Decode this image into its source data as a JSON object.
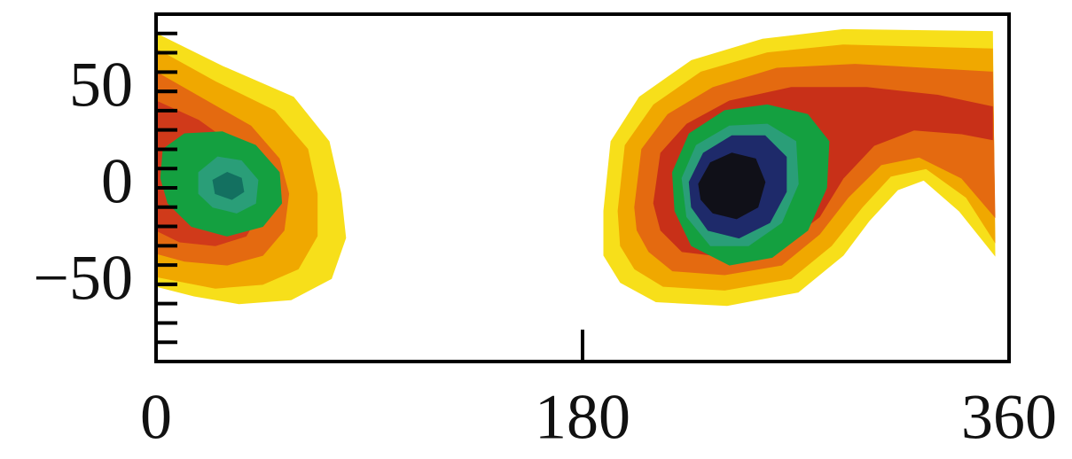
{
  "chart_data": {
    "type": "contour",
    "xlim": [
      0,
      360
    ],
    "ylim": [
      -90,
      90
    ],
    "xticks": [
      0,
      180,
      360
    ],
    "yticks": [
      {
        "value": -50,
        "label": "−50"
      },
      0,
      50
    ],
    "yminorticks": [
      -80,
      -70,
      -60,
      -50,
      -40,
      -30,
      -20,
      -10,
      0,
      10,
      20,
      30,
      40,
      50,
      60,
      70,
      80
    ],
    "regions": [
      {
        "color": "#f7df1a",
        "points": [
          [
            0,
            80
          ],
          [
            28,
            63
          ],
          [
            58,
            47
          ],
          [
            73,
            24
          ],
          [
            78,
            -3
          ],
          [
            80,
            -26
          ],
          [
            74,
            -47
          ],
          [
            57,
            -58
          ],
          [
            35,
            -60
          ],
          [
            16,
            -56
          ],
          [
            0,
            -51
          ]
        ]
      },
      {
        "color": "#f0a800",
        "points": [
          [
            0,
            72
          ],
          [
            25,
            55
          ],
          [
            50,
            40
          ],
          [
            64,
            20
          ],
          [
            68,
            -3
          ],
          [
            68,
            -25
          ],
          [
            60,
            -42
          ],
          [
            45,
            -50
          ],
          [
            25,
            -52
          ],
          [
            0,
            -46
          ]
        ]
      },
      {
        "color": "#e46a10",
        "points": [
          [
            0,
            60
          ],
          [
            20,
            46
          ],
          [
            40,
            32
          ],
          [
            52,
            15
          ],
          [
            56,
            -3
          ],
          [
            54,
            -22
          ],
          [
            45,
            -35
          ],
          [
            30,
            -40
          ],
          [
            12,
            -38
          ],
          [
            0,
            -34
          ]
        ]
      },
      {
        "color": "#d03a1a",
        "points": [
          [
            0,
            45
          ],
          [
            18,
            35
          ],
          [
            35,
            20
          ],
          [
            44,
            5
          ],
          [
            45,
            -10
          ],
          [
            38,
            -25
          ],
          [
            25,
            -30
          ],
          [
            10,
            -28
          ],
          [
            0,
            -22
          ]
        ]
      },
      {
        "color": "#14a040",
        "points": [
          [
            3,
            20
          ],
          [
            12,
            28
          ],
          [
            28,
            29
          ],
          [
            42,
            22
          ],
          [
            52,
            8
          ],
          [
            53,
            -8
          ],
          [
            45,
            -20
          ],
          [
            30,
            -25
          ],
          [
            15,
            -20
          ],
          [
            5,
            -8
          ],
          [
            2,
            5
          ]
        ]
      },
      {
        "color": "#2a9e78",
        "points": [
          [
            18,
            8
          ],
          [
            26,
            16
          ],
          [
            36,
            14
          ],
          [
            43,
            4
          ],
          [
            42,
            -8
          ],
          [
            34,
            -13
          ],
          [
            24,
            -10
          ],
          [
            18,
            -3
          ]
        ]
      },
      {
        "color": "#137060",
        "points": [
          [
            24,
            4
          ],
          [
            30,
            8
          ],
          [
            36,
            5
          ],
          [
            37,
            -2
          ],
          [
            32,
            -6
          ],
          [
            25,
            -3
          ]
        ]
      },
      {
        "color": "#f7df1a",
        "points": [
          [
            189,
            -12
          ],
          [
            192,
            24
          ],
          [
            204,
            47
          ],
          [
            226,
            66
          ],
          [
            256,
            77
          ],
          [
            290,
            82
          ],
          [
            353,
            81
          ],
          [
            354,
            -35
          ],
          [
            339,
            -12
          ],
          [
            324,
            4
          ],
          [
            313,
            -1
          ],
          [
            301,
            -17
          ],
          [
            290,
            -35
          ],
          [
            271,
            -54
          ],
          [
            241,
            -61
          ],
          [
            211,
            -59
          ],
          [
            196,
            -49
          ],
          [
            189,
            -35
          ]
        ]
      },
      {
        "color": "#f0a800",
        "points": [
          [
            195,
            -12
          ],
          [
            198,
            22
          ],
          [
            210,
            43
          ],
          [
            230,
            60
          ],
          [
            258,
            70
          ],
          [
            290,
            74
          ],
          [
            353,
            72
          ],
          [
            354,
            -28
          ],
          [
            342,
            -5
          ],
          [
            325,
            10
          ],
          [
            310,
            6
          ],
          [
            298,
            -10
          ],
          [
            285,
            -30
          ],
          [
            268,
            -47
          ],
          [
            240,
            -53
          ],
          [
            214,
            -51
          ],
          [
            202,
            -42
          ],
          [
            196,
            -30
          ]
        ]
      },
      {
        "color": "#e46a10",
        "points": [
          [
            202,
            -10
          ],
          [
            205,
            20
          ],
          [
            216,
            38
          ],
          [
            235,
            52
          ],
          [
            262,
            62
          ],
          [
            295,
            64
          ],
          [
            353,
            60
          ],
          [
            354,
            -15
          ],
          [
            340,
            5
          ],
          [
            322,
            16
          ],
          [
            306,
            12
          ],
          [
            292,
            -5
          ],
          [
            280,
            -24
          ],
          [
            264,
            -40
          ],
          [
            240,
            -45
          ],
          [
            218,
            -43
          ],
          [
            208,
            -33
          ],
          [
            203,
            -22
          ]
        ]
      },
      {
        "color": "#c83018",
        "points": [
          [
            210,
            -8
          ],
          [
            213,
            18
          ],
          [
            224,
            33
          ],
          [
            242,
            45
          ],
          [
            268,
            52
          ],
          [
            300,
            52
          ],
          [
            330,
            48
          ],
          [
            353,
            42
          ],
          [
            353,
            25
          ],
          [
            340,
            28
          ],
          [
            320,
            30
          ],
          [
            303,
            22
          ],
          [
            290,
            5
          ],
          [
            280,
            -15
          ],
          [
            264,
            -30
          ],
          [
            242,
            -36
          ],
          [
            222,
            -33
          ],
          [
            213,
            -22
          ]
        ]
      },
      {
        "color": "#14a040",
        "points": [
          [
            218,
            8
          ],
          [
            225,
            28
          ],
          [
            240,
            40
          ],
          [
            258,
            43
          ],
          [
            275,
            38
          ],
          [
            284,
            24
          ],
          [
            283,
            0
          ],
          [
            275,
            -22
          ],
          [
            260,
            -36
          ],
          [
            242,
            -40
          ],
          [
            226,
            -30
          ],
          [
            219,
            -12
          ]
        ]
      },
      {
        "color": "#2a9e78",
        "points": [
          [
            222,
            5
          ],
          [
            228,
            22
          ],
          [
            242,
            32
          ],
          [
            258,
            33
          ],
          [
            270,
            24
          ],
          [
            271,
            2
          ],
          [
            264,
            -18
          ],
          [
            250,
            -30
          ],
          [
            234,
            -30
          ],
          [
            224,
            -15
          ]
        ]
      },
      {
        "color": "#1e2a6a",
        "points": [
          [
            225,
            3
          ],
          [
            231,
            18
          ],
          [
            243,
            27
          ],
          [
            257,
            27
          ],
          [
            266,
            16
          ],
          [
            266,
            -2
          ],
          [
            259,
            -18
          ],
          [
            246,
            -26
          ],
          [
            233,
            -22
          ],
          [
            226,
            -10
          ]
        ]
      },
      {
        "color": "#101018",
        "points": [
          [
            229,
            2
          ],
          [
            234,
            13
          ],
          [
            243,
            18
          ],
          [
            253,
            15
          ],
          [
            257,
            3
          ],
          [
            254,
            -10
          ],
          [
            245,
            -16
          ],
          [
            235,
            -13
          ],
          [
            230,
            -6
          ]
        ]
      }
    ]
  }
}
